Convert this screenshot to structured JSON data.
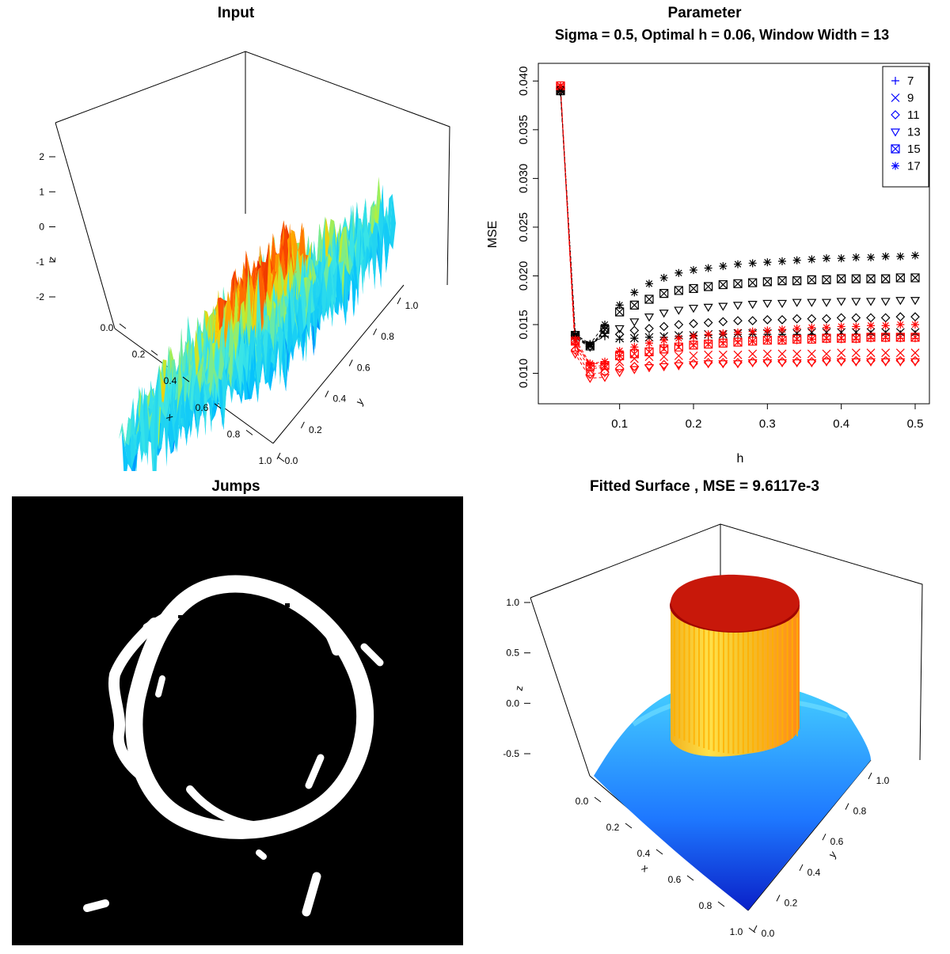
{
  "titles": {
    "input": "Input",
    "parameter": "Parameter",
    "parameter_sub": "Sigma = 0.5, Optimal h = 0.06, Window Width = 13",
    "jumps": "Jumps",
    "fitted": "Fitted Surface , MSE = 9.6117e-3"
  },
  "colors": {
    "black": "#000000",
    "red": "#ff0000",
    "blue": "#0000ff",
    "jump_bg": "#000000",
    "jump_fg": "#ffffff"
  },
  "chart_data": [
    {
      "id": "input-surface",
      "type": "surface3d",
      "title": "Input",
      "axes": {
        "x": {
          "label": "x",
          "ticks": [
            "0.0",
            "0.2",
            "0.4",
            "0.6",
            "0.8",
            "1.0"
          ]
        },
        "y": {
          "label": "y",
          "ticks": [
            "0.0",
            "0.2",
            "0.4",
            "0.6",
            "0.8",
            "1.0"
          ]
        },
        "z": {
          "label": "z",
          "ticks": [
            "-2",
            "-1",
            "0",
            "1",
            "2"
          ]
        }
      },
      "zlim": [
        -2.5,
        2.5
      ],
      "description_values": {
        "disk_level": 1,
        "background_level": 0,
        "noise_sigma": 0.5
      }
    },
    {
      "id": "mse-plot",
      "type": "scatter",
      "title": "Parameter",
      "subtitle": "Sigma = 0.5, Optimal h = 0.06, Window Width = 13",
      "xlabel": "h",
      "ylabel": "MSE",
      "xlim": [
        0.02,
        0.5
      ],
      "ylim": [
        0.0085,
        0.041
      ],
      "xticks": [
        "0.1",
        "0.2",
        "0.3",
        "0.4",
        "0.5"
      ],
      "yticks": [
        "0.010",
        "0.015",
        "0.020",
        "0.025",
        "0.030",
        "0.035",
        "0.040"
      ],
      "x": [
        0.02,
        0.04,
        0.06,
        0.08,
        0.1,
        0.12,
        0.14,
        0.16,
        0.18,
        0.2,
        0.22,
        0.24,
        0.26,
        0.28,
        0.3,
        0.32,
        0.34,
        0.36,
        0.38,
        0.4,
        0.42,
        0.44,
        0.46,
        0.48,
        0.5
      ],
      "legend": {
        "position": "top-right",
        "entries": [
          "7",
          "9",
          "11",
          "13",
          "15",
          "17"
        ]
      },
      "series": [
        {
          "name": "7",
          "symbol": "plus",
          "black": [
            0.039,
            0.014,
            0.013,
            0.0138,
            0.0135,
            0.0136,
            0.0137,
            0.0137,
            0.0138,
            0.0139,
            0.0139,
            0.014,
            0.014,
            0.014,
            0.014,
            0.014,
            0.014,
            0.014,
            0.014,
            0.014,
            0.014,
            0.014,
            0.014,
            0.014,
            0.014
          ],
          "red": [
            0.039,
            0.013,
            0.011,
            0.011,
            0.0118,
            0.0124,
            0.0126,
            0.0127,
            0.0129,
            0.013,
            0.0131,
            0.0132,
            0.0133,
            0.0133,
            0.0134,
            0.0134,
            0.0134,
            0.0135,
            0.0135,
            0.0135,
            0.0135,
            0.0136,
            0.0136,
            0.0136,
            0.0136
          ]
        },
        {
          "name": "9",
          "symbol": "cross",
          "black": [
            0.0391,
            0.0138,
            0.0129,
            0.014,
            0.0136,
            0.0136,
            0.0137,
            0.0138,
            0.0139,
            0.0139,
            0.014,
            0.014,
            0.0141,
            0.0141,
            0.0141,
            0.0141,
            0.0141,
            0.0142,
            0.0142,
            0.0142,
            0.0142,
            0.0142,
            0.0142,
            0.0142,
            0.0142
          ],
          "red": [
            0.0392,
            0.0128,
            0.0105,
            0.0106,
            0.0112,
            0.0115,
            0.0117,
            0.0117,
            0.0118,
            0.0118,
            0.0119,
            0.0119,
            0.0119,
            0.012,
            0.012,
            0.012,
            0.012,
            0.012,
            0.012,
            0.0121,
            0.0121,
            0.0121,
            0.0121,
            0.0121,
            0.0121
          ]
        },
        {
          "name": "11",
          "symbol": "diamond",
          "black": [
            0.039,
            0.0137,
            0.0128,
            0.0144,
            0.014,
            0.0144,
            0.0146,
            0.0148,
            0.015,
            0.0151,
            0.0152,
            0.0153,
            0.0154,
            0.0154,
            0.0155,
            0.0155,
            0.0156,
            0.0156,
            0.0156,
            0.0157,
            0.0157,
            0.0157,
            0.0157,
            0.0158,
            0.0158
          ],
          "red": [
            0.0393,
            0.0124,
            0.0099,
            0.0101,
            0.0105,
            0.0107,
            0.0108,
            0.0109,
            0.011,
            0.011,
            0.0111,
            0.0111,
            0.0111,
            0.0112,
            0.0112,
            0.0112,
            0.0112,
            0.0112,
            0.0113,
            0.0113,
            0.0113,
            0.0113,
            0.0113,
            0.0113,
            0.0113
          ]
        },
        {
          "name": "13",
          "symbol": "triangle-down",
          "black": [
            0.0389,
            0.0136,
            0.0127,
            0.0143,
            0.0146,
            0.0153,
            0.0158,
            0.0162,
            0.0165,
            0.0167,
            0.0168,
            0.0169,
            0.017,
            0.0171,
            0.0172,
            0.0172,
            0.0173,
            0.0173,
            0.0173,
            0.0174,
            0.0174,
            0.0174,
            0.0174,
            0.0175,
            0.0175
          ],
          "red": [
            0.0394,
            0.012,
            0.0095,
            0.0096,
            0.0101,
            0.0104,
            0.0106,
            0.0107,
            0.0108,
            0.0109,
            0.011,
            0.011,
            0.011,
            0.0111,
            0.0111,
            0.0111,
            0.0111,
            0.0111,
            0.0112,
            0.0112,
            0.0112,
            0.0112,
            0.0112,
            0.0112,
            0.0112
          ]
        },
        {
          "name": "15",
          "symbol": "boxed-x",
          "black": [
            0.039,
            0.0139,
            0.0128,
            0.0145,
            0.0163,
            0.017,
            0.0176,
            0.0182,
            0.0185,
            0.0187,
            0.0189,
            0.0191,
            0.0192,
            0.0193,
            0.0194,
            0.0195,
            0.0195,
            0.0196,
            0.0196,
            0.0197,
            0.0197,
            0.0197,
            0.0197,
            0.0198,
            0.0198
          ],
          "red": [
            0.0395,
            0.0133,
            0.0107,
            0.0108,
            0.0118,
            0.012,
            0.0122,
            0.0125,
            0.0127,
            0.0129,
            0.013,
            0.0131,
            0.0132,
            0.0133,
            0.0134,
            0.0134,
            0.0135,
            0.0135,
            0.0136,
            0.0136,
            0.0136,
            0.0137,
            0.0137,
            0.0137,
            0.0137
          ]
        },
        {
          "name": "17",
          "symbol": "asterisk",
          "black": [
            0.039,
            0.014,
            0.013,
            0.015,
            0.017,
            0.0183,
            0.0192,
            0.0198,
            0.0203,
            0.0206,
            0.0208,
            0.021,
            0.0212,
            0.0213,
            0.0214,
            0.0215,
            0.0216,
            0.0217,
            0.0218,
            0.0218,
            0.0219,
            0.0219,
            0.022,
            0.022,
            0.0221
          ],
          "red": [
            0.0395,
            0.0135,
            0.011,
            0.0112,
            0.0123,
            0.0127,
            0.0131,
            0.0134,
            0.0136,
            0.0138,
            0.014,
            0.0141,
            0.0142,
            0.0143,
            0.0144,
            0.0145,
            0.0146,
            0.0147,
            0.0147,
            0.0148,
            0.0148,
            0.0149,
            0.0149,
            0.015,
            0.015
          ]
        }
      ]
    },
    {
      "id": "jumps-image",
      "type": "binary-image",
      "title": "Jumps",
      "description_values": {
        "foreground": "detected jump points (white ring)",
        "background": "black"
      }
    },
    {
      "id": "fitted-surface",
      "type": "surface3d",
      "title": "Fitted Surface , MSE = 9.6117e-3",
      "axes": {
        "x": {
          "label": "x",
          "ticks": [
            "0.0",
            "0.2",
            "0.4",
            "0.6",
            "0.8",
            "1.0"
          ]
        },
        "y": {
          "label": "y",
          "ticks": [
            "0.0",
            "0.2",
            "0.4",
            "0.6",
            "0.8",
            "1.0"
          ]
        },
        "z": {
          "label": "z",
          "ticks": [
            "-0.5",
            "0.0",
            "0.5",
            "1.0"
          ]
        }
      },
      "zlim": [
        -0.8,
        1.1
      ],
      "description_values": {
        "disk_level": 1,
        "background_level": 0
      }
    }
  ]
}
